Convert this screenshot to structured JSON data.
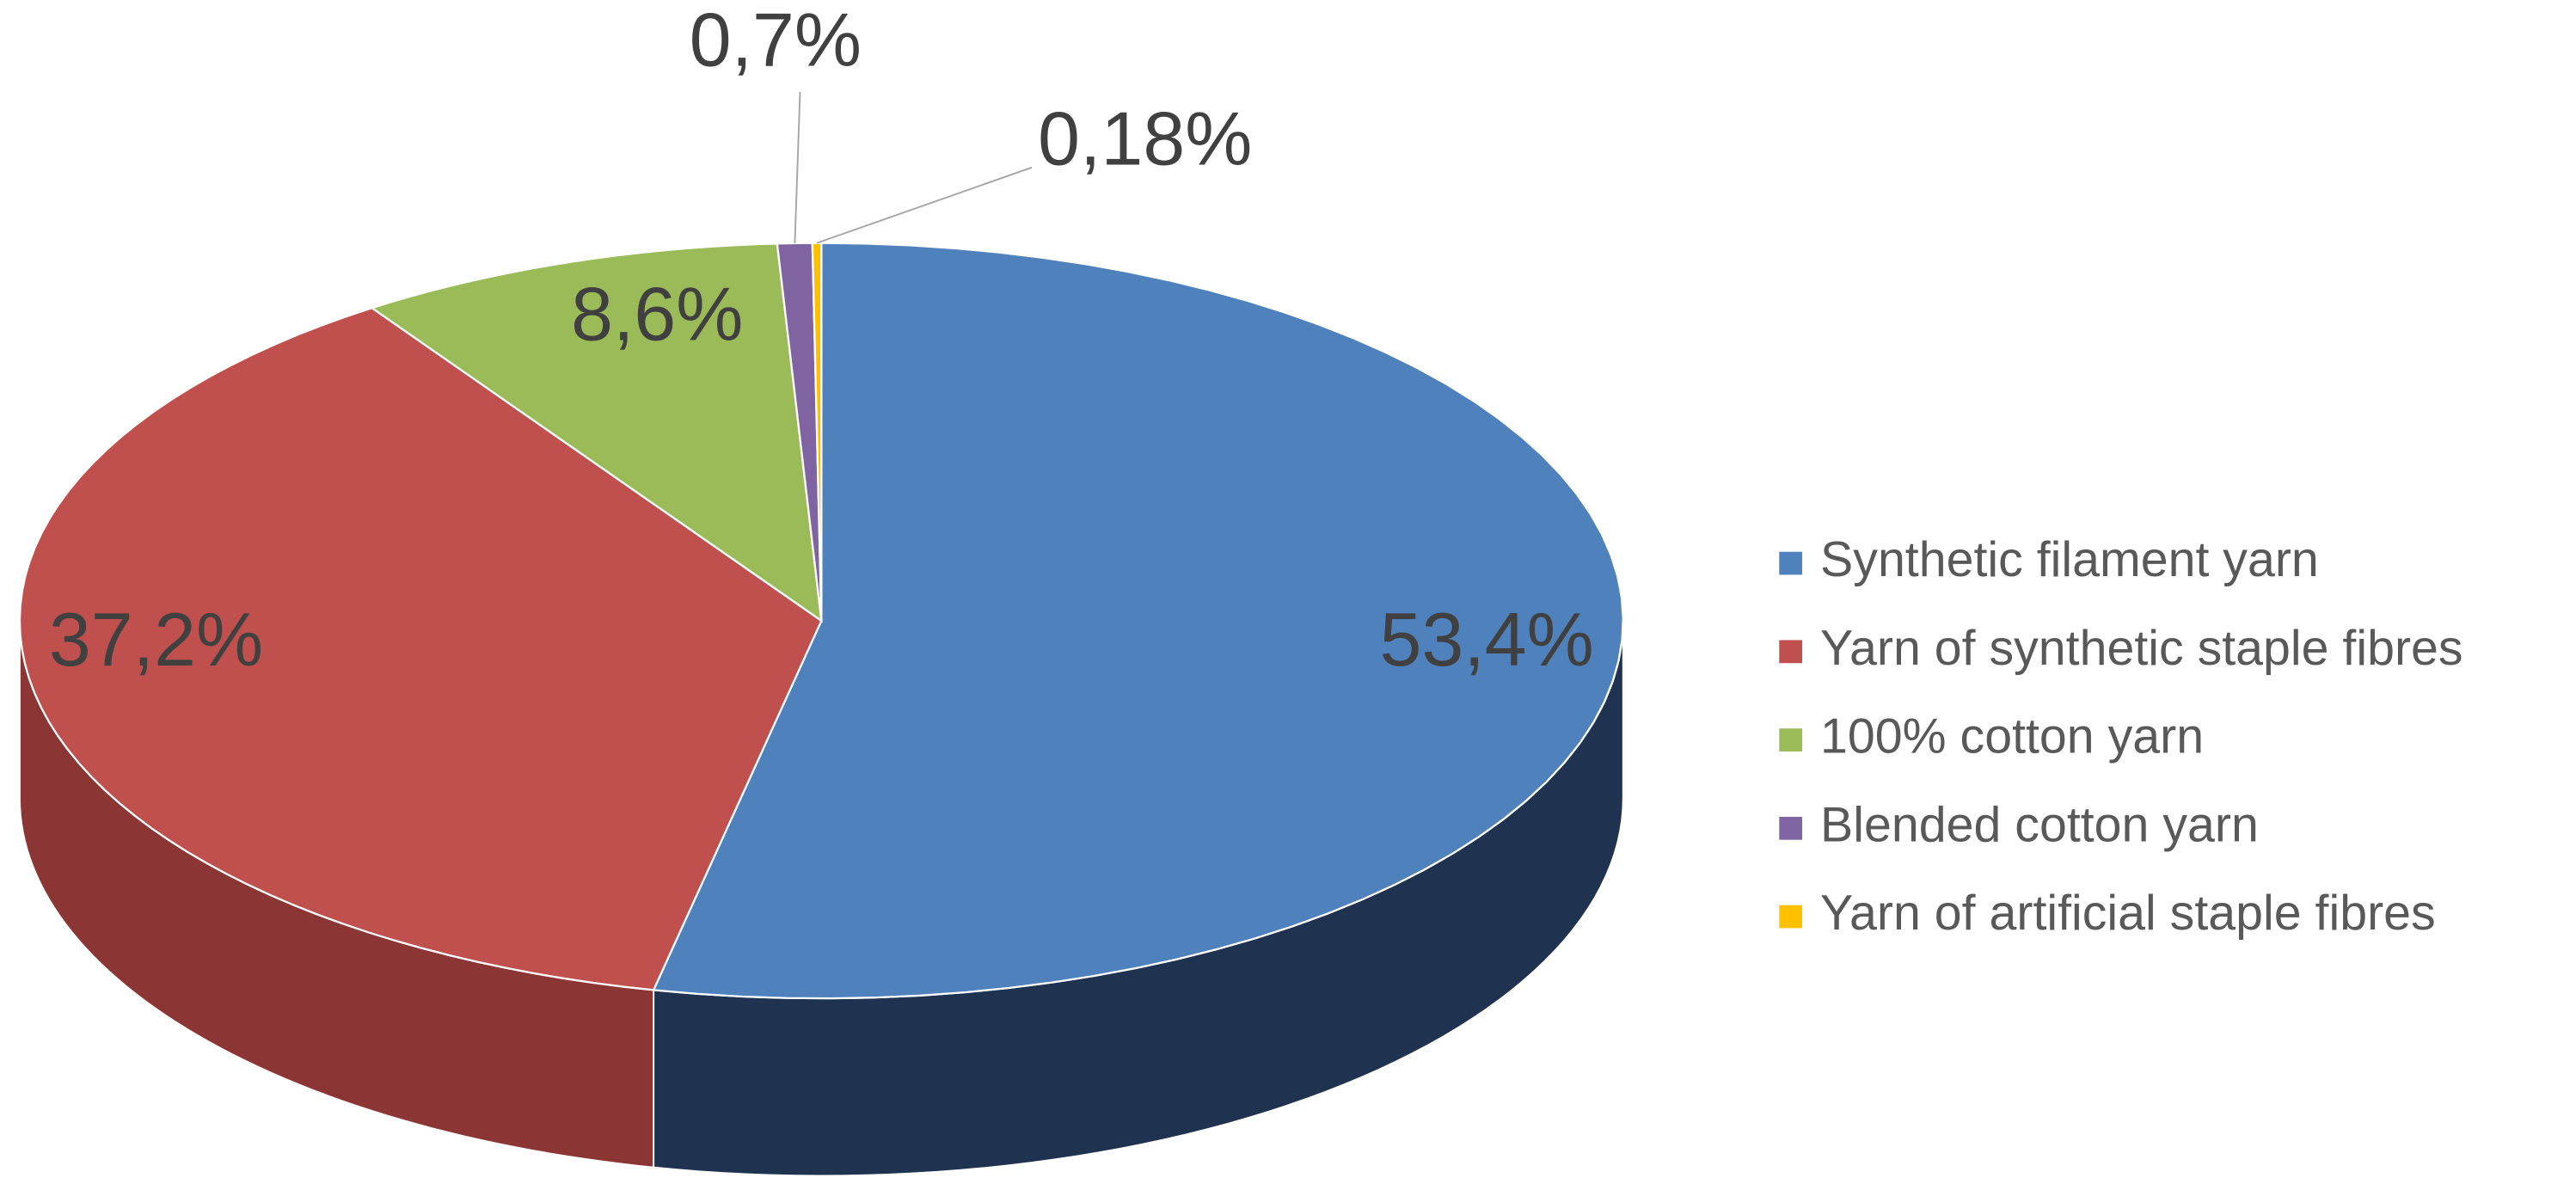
{
  "chart_data": {
    "type": "pie",
    "categories": [
      "Synthetic filament yarn",
      "Yarn of synthetic staple fibres",
      "100% cotton yarn",
      "Blended cotton yarn",
      "Yarn of artificial staple fibres"
    ],
    "values": [
      53.4,
      37.2,
      8.6,
      0.7,
      0.18
    ],
    "value_labels": [
      "53,4%",
      "37,2%",
      "8,6%",
      "0,7%",
      "0,18%"
    ],
    "colors": [
      "#4f81bd",
      "#c0504d",
      "#9bbb59",
      "#8064a2",
      "#ffc000"
    ],
    "side_colors": [
      "#1f3350",
      "#8b3634",
      "#637a36",
      "#503c6a",
      "#a37b00"
    ],
    "legend": "right"
  }
}
